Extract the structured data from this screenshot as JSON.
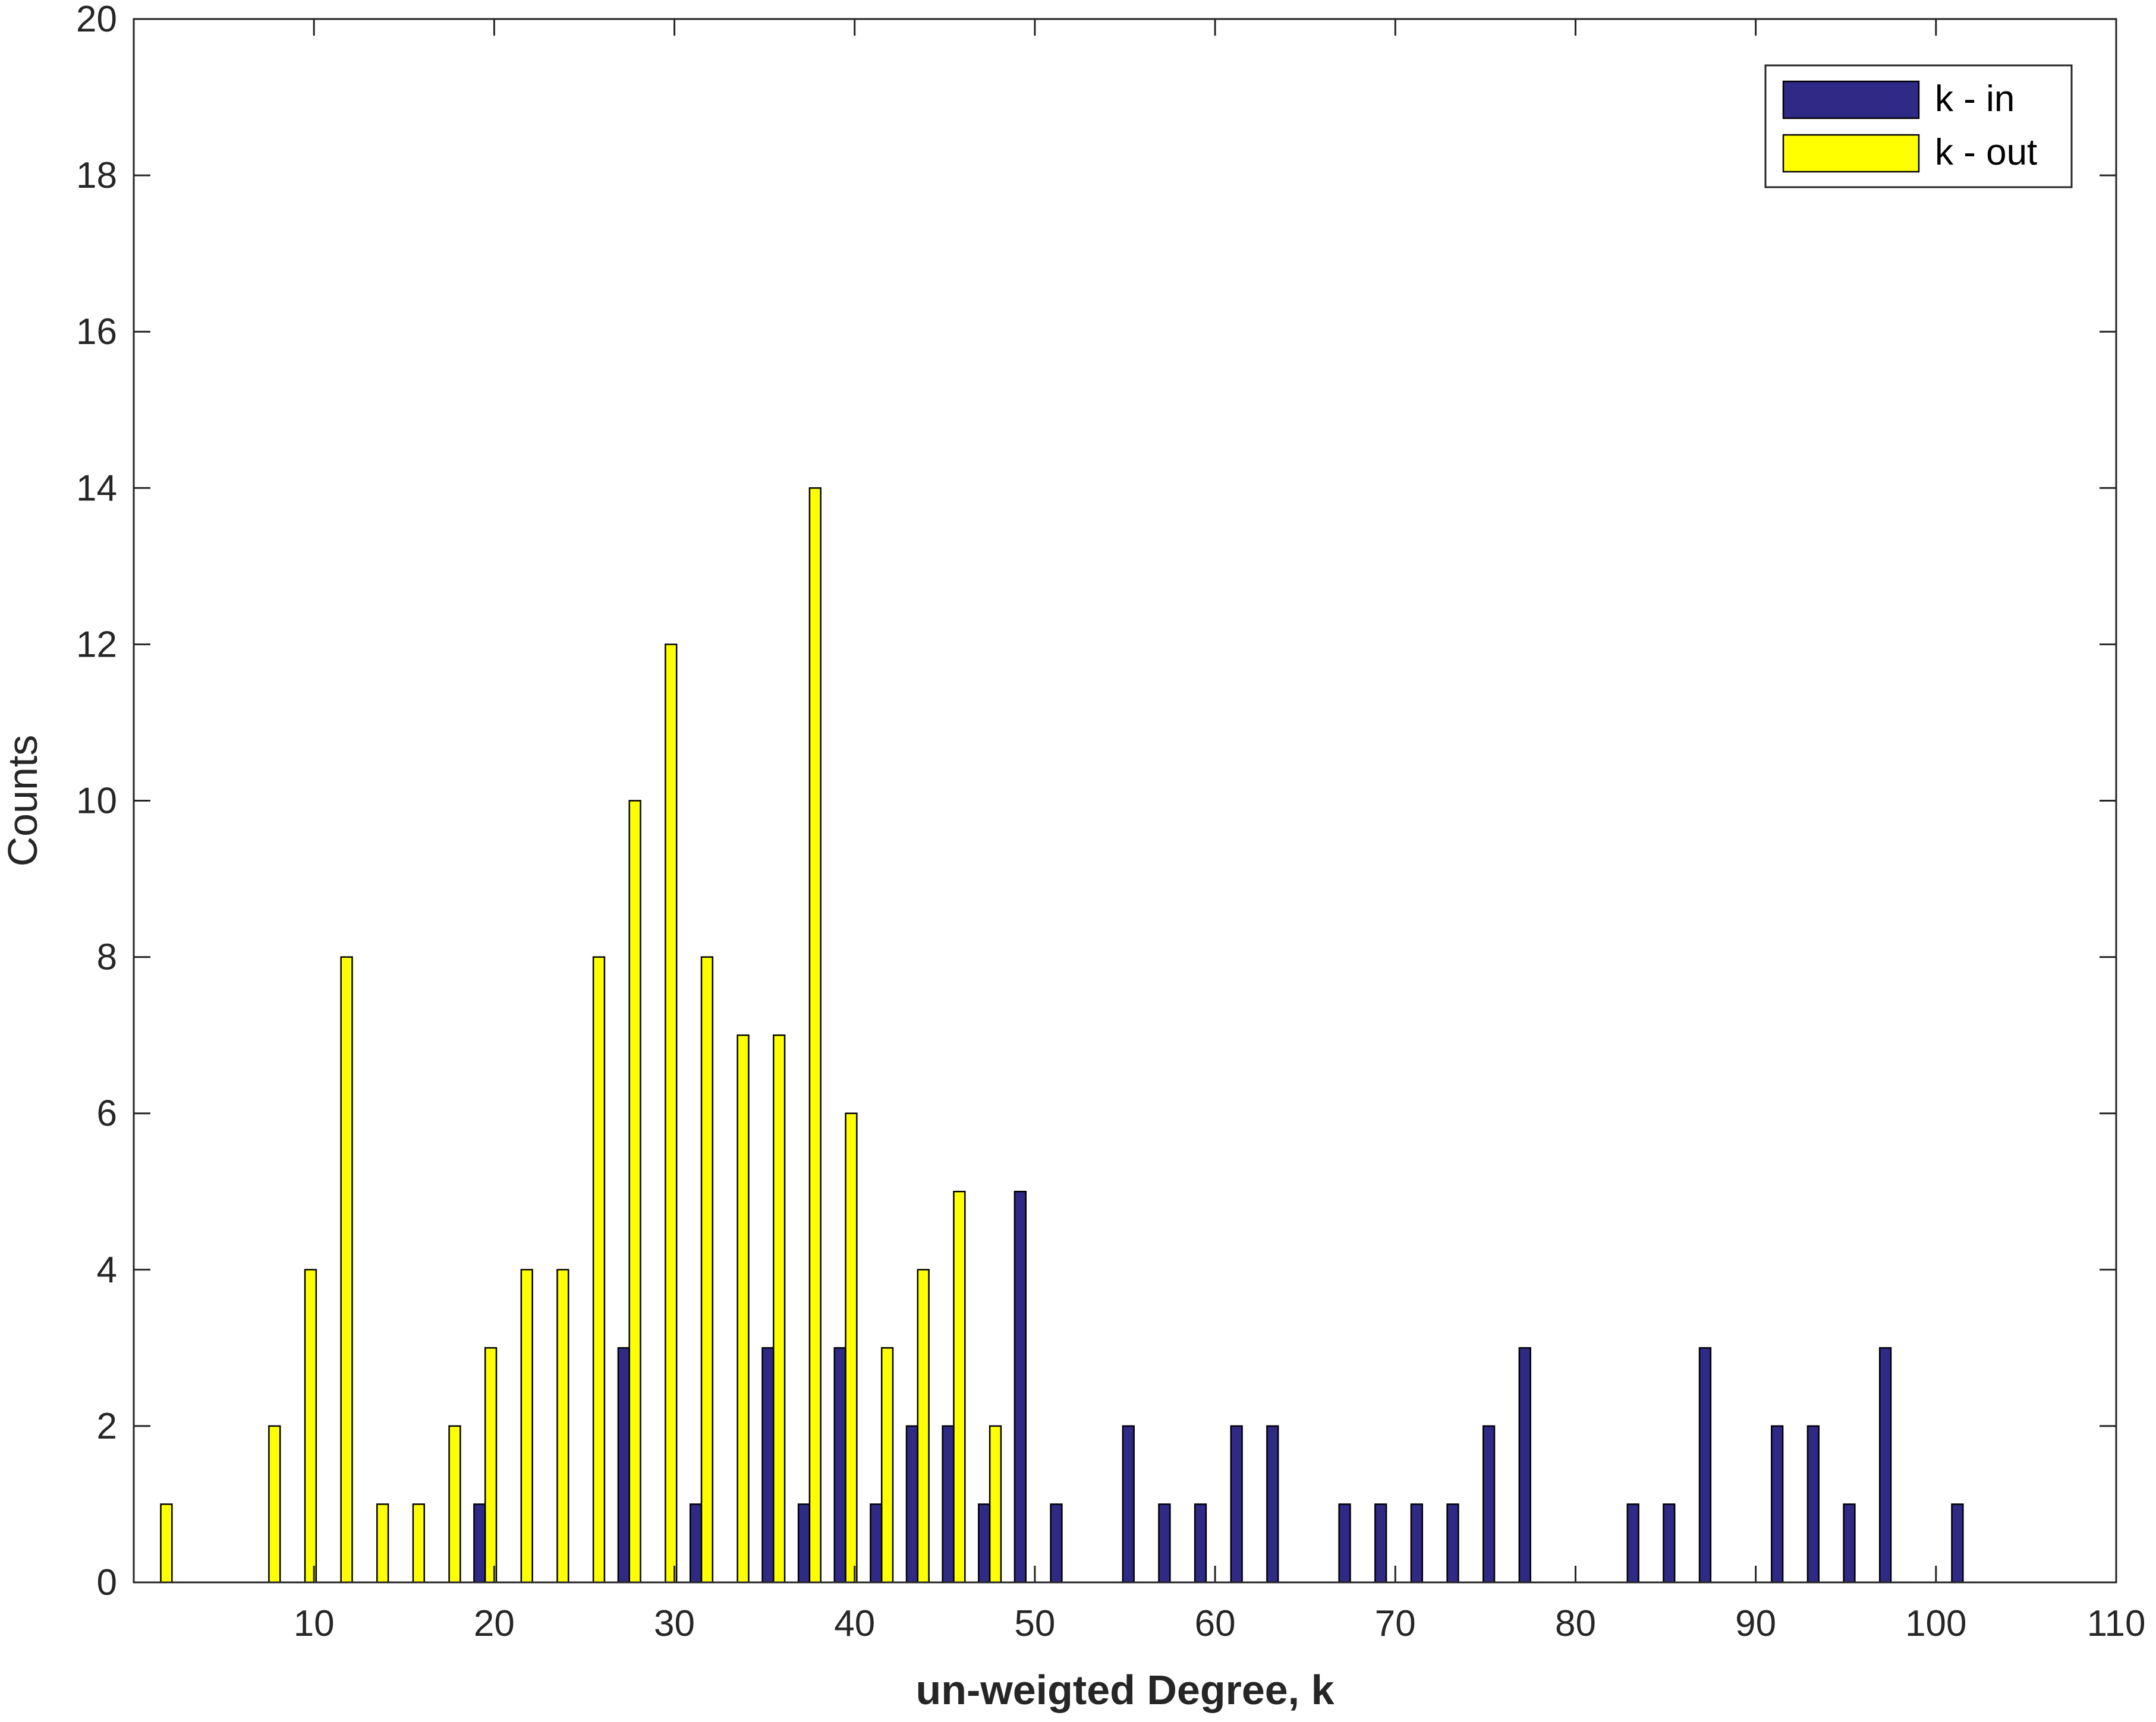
{
  "chart_data": {
    "type": "bar",
    "xlabel": "un-weigted Degree, k",
    "ylabel": "Counts",
    "xlim": [
      0,
      110
    ],
    "ylim": [
      0,
      20
    ],
    "xticks": [
      10,
      20,
      30,
      40,
      50,
      60,
      70,
      80,
      90,
      100,
      110
    ],
    "yticks": [
      0,
      2,
      4,
      6,
      8,
      10,
      12,
      14,
      16,
      18,
      20
    ],
    "grid": false,
    "legend_position": "top-right",
    "x": [
      1.5,
      3.5,
      5.5,
      7.5,
      9.5,
      11.5,
      13.5,
      15.5,
      17.5,
      19.5,
      21.5,
      23.5,
      25.5,
      27.5,
      29.5,
      31.5,
      33.5,
      35.5,
      37.5,
      39.5,
      41.5,
      43.5,
      45.5,
      47.5,
      49.5,
      51.5,
      53.5,
      55.5,
      57.5,
      59.5,
      61.5,
      63.5,
      65.5,
      67.5,
      69.5,
      71.5,
      73.5,
      75.5,
      77.5,
      79.5,
      81.5,
      83.5,
      85.5,
      87.5,
      89.5,
      91.5,
      93.5,
      95.5,
      97.5,
      99.5,
      101.5,
      103.5
    ],
    "series": [
      {
        "name": "k - in",
        "color": "#2e2a86",
        "values": [
          0,
          0,
          0,
          0,
          0,
          0,
          0,
          0,
          0,
          1,
          0,
          0,
          0,
          3,
          0,
          1,
          0,
          3,
          1,
          3,
          1,
          2,
          2,
          1,
          5,
          1,
          0,
          2,
          1,
          1,
          2,
          2,
          0,
          1,
          1,
          1,
          1,
          2,
          3,
          0,
          0,
          1,
          1,
          3,
          0,
          2,
          2,
          1,
          3,
          0,
          1,
          0
        ]
      },
      {
        "name": "k - out",
        "color": "#ffff00",
        "values": [
          1,
          0,
          0,
          2,
          4,
          8,
          1,
          1,
          2,
          3,
          4,
          4,
          8,
          10,
          12,
          8,
          7,
          7,
          14,
          6,
          3,
          4,
          5,
          2,
          0,
          0,
          0,
          0,
          0,
          0,
          0,
          0,
          0,
          0,
          0,
          0,
          0,
          0,
          0,
          0,
          0,
          0,
          0,
          0,
          0,
          0,
          0,
          0,
          0,
          0,
          0,
          0
        ]
      }
    ]
  }
}
